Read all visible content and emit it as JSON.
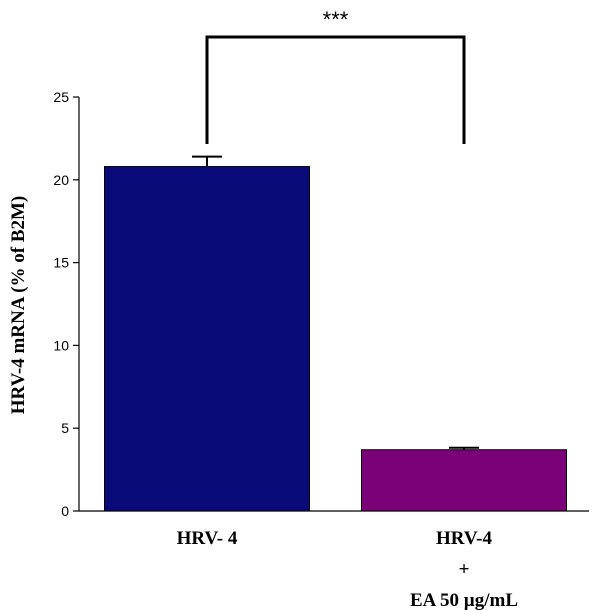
{
  "chart_data": {
    "type": "bar",
    "title": "",
    "xlabel": "",
    "ylabel": "HRV-4 mRNA  (% of B2M)",
    "ylim": [
      0,
      25
    ],
    "yticks": [
      0,
      5,
      10,
      15,
      20,
      25
    ],
    "categories": [
      {
        "lines": [
          "HRV- 4"
        ]
      },
      {
        "lines": [
          "HRV-4",
          "+",
          "EA 50 µg/mL"
        ]
      }
    ],
    "values": [
      20.8,
      3.7
    ],
    "errors": [
      0.6,
      0.12
    ],
    "bar_colors": [
      "#0a0a78",
      "#7a0077"
    ],
    "significance": {
      "label": "***",
      "between": [
        0,
        1
      ]
    },
    "grid": false,
    "legend": "none"
  }
}
